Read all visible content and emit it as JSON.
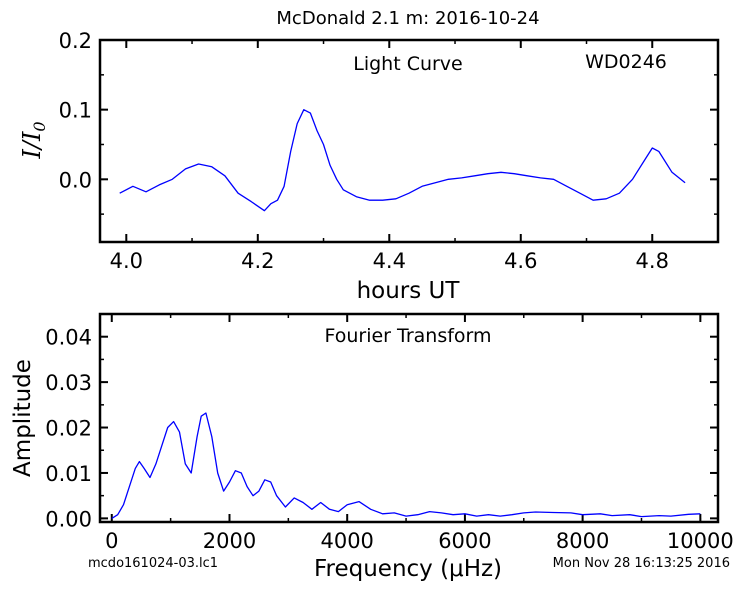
{
  "figure": {
    "title": "McDonald 2.1 m:  2016-10-24",
    "footer_left": "mcdo161024-03.lc1",
    "footer_right": "Mon Nov 28 16:13:25 2016",
    "line_color": "#0000ff"
  },
  "chart_data": [
    {
      "type": "line",
      "name": "light-curve",
      "annotation": "Light Curve",
      "target": "WD0246",
      "xlabel": "hours UT",
      "ylabel": "I/I0",
      "xlim": [
        3.96,
        4.9
      ],
      "ylim": [
        -0.09,
        0.2
      ],
      "xticks": [
        4.0,
        4.2,
        4.4,
        4.6,
        4.8
      ],
      "xtick_labels": [
        "4.0",
        "4.2",
        "4.4",
        "4.6",
        "4.8"
      ],
      "yticks": [
        0.0,
        0.1,
        0.2
      ],
      "ytick_labels": [
        "0.0",
        "0.1",
        "0.2"
      ],
      "grid": false,
      "x": [
        3.99,
        4.01,
        4.03,
        4.05,
        4.07,
        4.09,
        4.11,
        4.13,
        4.15,
        4.17,
        4.19,
        4.21,
        4.22,
        4.23,
        4.24,
        4.25,
        4.26,
        4.27,
        4.28,
        4.29,
        4.3,
        4.31,
        4.32,
        4.33,
        4.35,
        4.37,
        4.39,
        4.41,
        4.43,
        4.45,
        4.47,
        4.49,
        4.51,
        4.53,
        4.55,
        4.57,
        4.59,
        4.61,
        4.63,
        4.65,
        4.67,
        4.69,
        4.71,
        4.73,
        4.75,
        4.77,
        4.79,
        4.8,
        4.81,
        4.83,
        4.85
      ],
      "y": [
        -0.02,
        -0.01,
        -0.018,
        -0.008,
        0.0,
        0.015,
        0.022,
        0.018,
        0.005,
        -0.02,
        -0.032,
        -0.045,
        -0.035,
        -0.03,
        -0.01,
        0.04,
        0.08,
        0.1,
        0.095,
        0.07,
        0.05,
        0.02,
        0.0,
        -0.015,
        -0.025,
        -0.03,
        -0.03,
        -0.028,
        -0.02,
        -0.01,
        -0.005,
        0.0,
        0.002,
        0.005,
        0.008,
        0.01,
        0.008,
        0.005,
        0.002,
        0.0,
        -0.01,
        -0.02,
        -0.03,
        -0.028,
        -0.02,
        0.0,
        0.03,
        0.045,
        0.04,
        0.01,
        -0.005
      ]
    },
    {
      "type": "line",
      "name": "fourier-transform",
      "annotation": "Fourier Transform",
      "xlabel": "Frequency (μHz)",
      "ylabel": "Amplitude",
      "xlim": [
        -200,
        10300
      ],
      "ylim": [
        -0.0008,
        0.045
      ],
      "xticks": [
        0,
        2000,
        4000,
        6000,
        8000,
        10000
      ],
      "xtick_labels": [
        "0",
        "2000",
        "4000",
        "6000",
        "8000",
        "10000"
      ],
      "yticks": [
        0.0,
        0.01,
        0.02,
        0.03,
        0.04
      ],
      "ytick_labels": [
        "0.00",
        "0.01",
        "0.02",
        "0.03",
        "0.04"
      ],
      "grid": false,
      "x": [
        0,
        100,
        200,
        300,
        400,
        470,
        550,
        650,
        750,
        850,
        950,
        1050,
        1150,
        1250,
        1350,
        1450,
        1520,
        1600,
        1700,
        1800,
        1900,
        2000,
        2100,
        2200,
        2300,
        2400,
        2500,
        2600,
        2700,
        2800,
        2950,
        3100,
        3250,
        3400,
        3550,
        3700,
        3850,
        4000,
        4200,
        4400,
        4600,
        4800,
        5000,
        5200,
        5400,
        5600,
        5800,
        6000,
        6200,
        6400,
        6600,
        6800,
        7000,
        7200,
        7500,
        7800,
        8000,
        8300,
        8500,
        8800,
        9000,
        9300,
        9500,
        9800,
        10000
      ],
      "y": [
        0.0,
        0.0008,
        0.003,
        0.007,
        0.011,
        0.0125,
        0.011,
        0.009,
        0.012,
        0.016,
        0.02,
        0.0213,
        0.019,
        0.012,
        0.01,
        0.018,
        0.0225,
        0.0232,
        0.018,
        0.01,
        0.006,
        0.008,
        0.0105,
        0.01,
        0.007,
        0.005,
        0.006,
        0.0085,
        0.008,
        0.005,
        0.0025,
        0.0045,
        0.0035,
        0.002,
        0.0035,
        0.002,
        0.0015,
        0.003,
        0.0037,
        0.002,
        0.001,
        0.0012,
        0.0005,
        0.0008,
        0.0015,
        0.0012,
        0.0008,
        0.001,
        0.0005,
        0.0008,
        0.0005,
        0.0008,
        0.0012,
        0.0014,
        0.0013,
        0.0012,
        0.0008,
        0.001,
        0.0006,
        0.0008,
        0.0004,
        0.0006,
        0.0005,
        0.0009,
        0.001
      ]
    }
  ]
}
